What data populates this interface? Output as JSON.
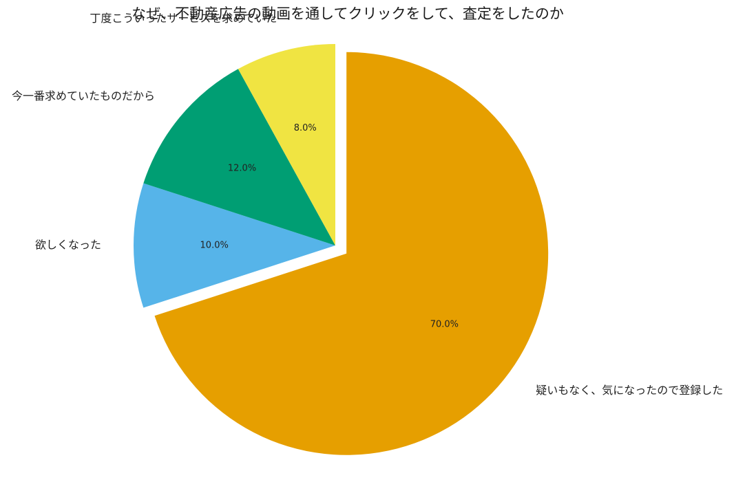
{
  "chart_data": {
    "type": "pie",
    "title": "なぜ、不動産広告の動画を通してクリックをして、査定をしたのか",
    "slices": [
      {
        "label": "疑いもなく、気になったので登録した",
        "value": 70.0,
        "pct_label": "70.0%",
        "color": "#E69F00",
        "exploded": true
      },
      {
        "label": "欲しくなった",
        "value": 10.0,
        "pct_label": "10.0%",
        "color": "#56B4E9",
        "exploded": false
      },
      {
        "label": "今一番求めていたものだから",
        "value": 12.0,
        "pct_label": "12.0%",
        "color": "#009E73",
        "exploded": false
      },
      {
        "label": "丁度こういったサービスを求めていた",
        "value": 8.0,
        "pct_label": "8.0%",
        "color": "#F0E442",
        "exploded": false
      }
    ],
    "start_angle": "top",
    "direction": "clockwise",
    "legend": "none"
  }
}
